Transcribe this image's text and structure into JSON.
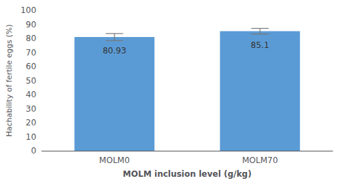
{
  "chart_data": {
    "type": "bar",
    "categories": [
      "MOLM0",
      "MOLM70"
    ],
    "values": [
      80.93,
      85.1
    ],
    "errors": [
      2.5,
      2.0
    ],
    "value_labels": [
      "80.93",
      "85.1"
    ],
    "data_labels": true,
    "color": "#5b9bd5",
    "xlabel": "MOLM inclusion level (g/kg)",
    "ylabel": "Hachability of fertile eggs (%)",
    "ylim": [
      0,
      100
    ],
    "yticks": [
      0,
      10,
      20,
      30,
      40,
      50,
      60,
      70,
      80,
      90,
      100
    ],
    "grid": false
  }
}
